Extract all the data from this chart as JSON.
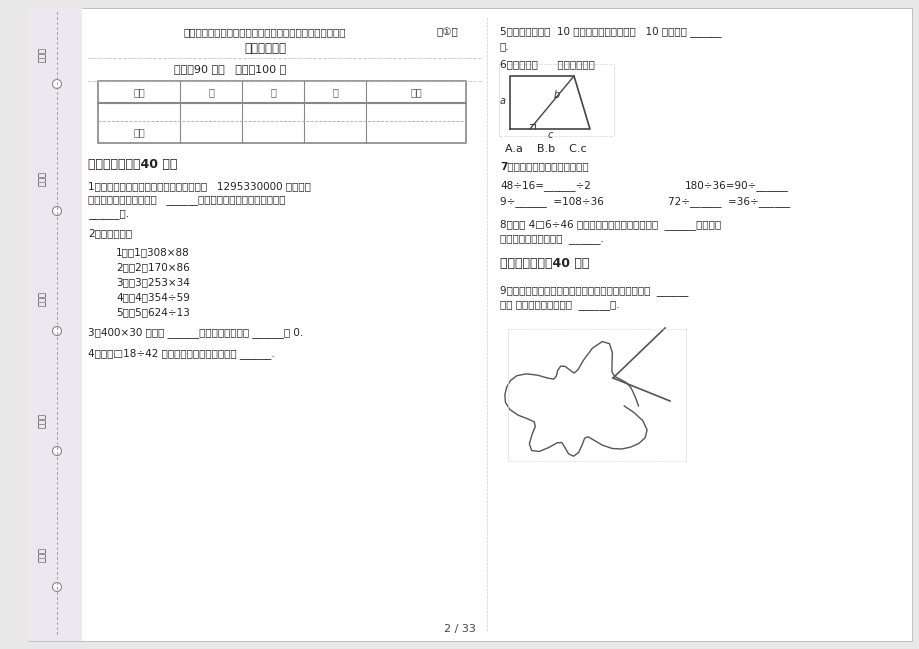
{
  "bg_color": "#f5f5f5",
  "page_bg": "#ffffff",
  "title_main": "部编版四年级上学期小学数学过关综合期末真题模拟试卷卷",
  "title_num": "（①）",
  "title_sub": "知识练习试卷",
  "time_info": "时间：90 分钟   满分：100 分",
  "table_headers": [
    "题号",
    "一",
    "二",
    "三",
    "总分"
  ],
  "table_row2": [
    "得分",
    "",
    "",
    "",
    ""
  ],
  "section1_title": "一、基础练习（40 分）",
  "q1_line1": "1．第五次人口普查结果公布：中国总人口   1295330000 人，改写",
  "q1_line2": "成以「万」为单位的数是   ______人，省略「亿」后面的尾数约是",
  "q1_line3": "______人.",
  "q2_title": "2．列竖式计算",
  "q2_items": [
    "1．（1）308×88",
    "2．（2）170×86",
    "3．（3）253×34",
    "4．（4）354÷59",
    "5．（5）624÷13"
  ],
  "q3": "3．400×30 的积是 ______位数，积的末尾有 ______个 0.",
  "q4": "4．要使□18÷42 的商是一位数，口里最大填 ______.",
  "q5_line1": "5．一个因数扩大  10 倍，另一个因数也扩大   10 倍，则积 ______",
  "q5_line2": "倍.",
  "q6": "6．如图中（      ）是梯形的高",
  "q6_choices": "A.a    B.b    C.c",
  "q7_title": "7．利用商不变的性质，填空。",
  "q7_line1a": "48÷16=______÷2",
  "q7_line1b": "180÷36=90÷______",
  "q7_line2a": "9÷______  =108÷36",
  "q7_line2b": "72÷______  =36÷______",
  "q8_line1": "8．要使 4□6÷46 的商是两位数，口里最小可填  ______，要使商",
  "q8_line2": "是一位数，口最大可填  ______.",
  "section2_title": "二、综合练习（40 分）",
  "q9_line1": "9．如图，一个角被遗住了一部分，先估一估，这是个  ______",
  "q9_line2": "角； 再量一量，这个角是  ______度.",
  "page_num": "2 / 33",
  "left_labels": [
    "考号：",
    "考场：",
    "姓名：",
    "班级：",
    "学校："
  ],
  "dotted_line_color": "#999999",
  "border_color": "#888888",
  "text_color": "#222222",
  "light_text": "#555555"
}
